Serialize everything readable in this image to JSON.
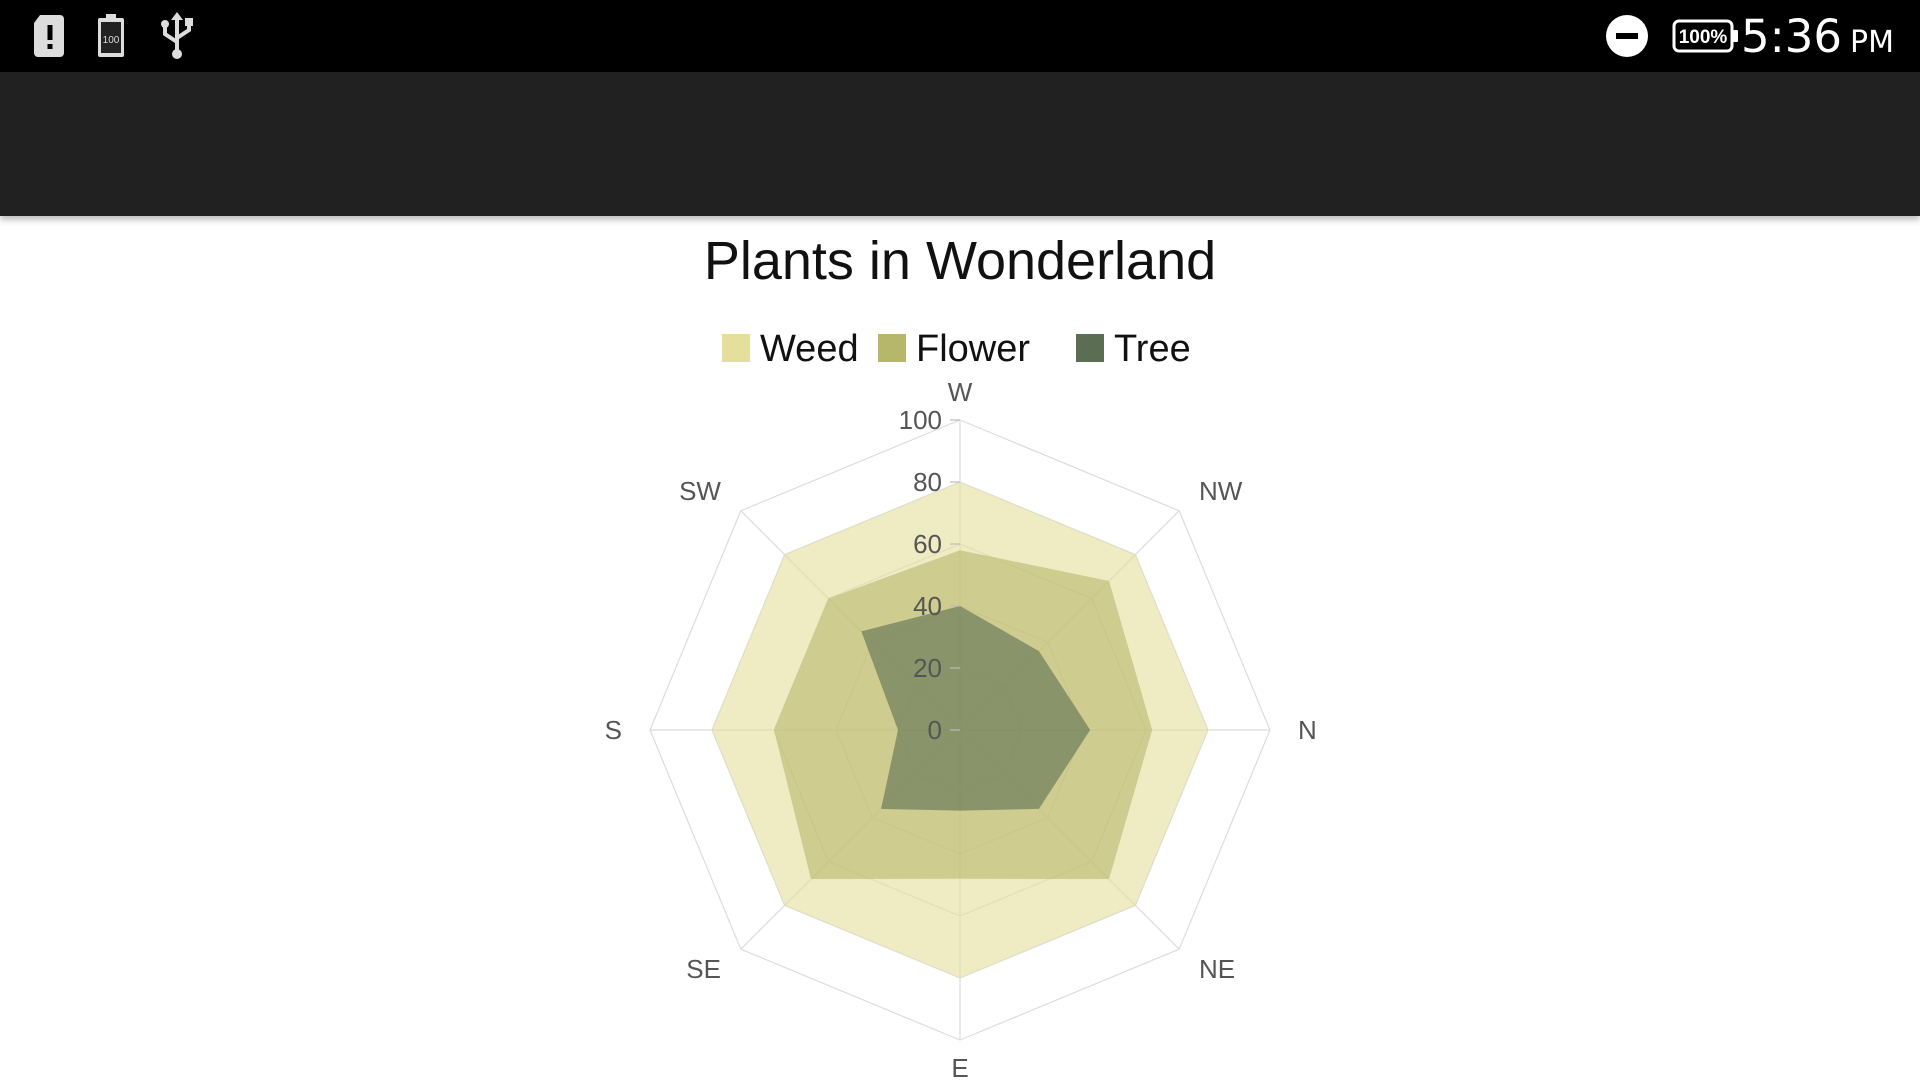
{
  "status_bar": {
    "icons": [
      "alert-sim-icon",
      "battery-saver-icon",
      "usb-icon"
    ],
    "right_icons": [
      "do-not-disturb-icon",
      "battery-icon"
    ],
    "battery_text": "100%",
    "battery_small_text": "100",
    "time": "5:36",
    "ampm": "PM"
  },
  "app_bar": {
    "title": ""
  },
  "chart_data": {
    "type": "radar",
    "title": "Plants in Wonderland",
    "categories": [
      "W",
      "NW",
      "N",
      "NE",
      "E",
      "SE",
      "S",
      "SW"
    ],
    "ylim": [
      0,
      100
    ],
    "ticks": [
      "0",
      "20",
      "40",
      "60",
      "80",
      "100"
    ],
    "grid": true,
    "legend_position": "top",
    "series": [
      {
        "name": "Weed",
        "color": "#E4DF9B",
        "values": [
          80,
          80,
          80,
          80,
          80,
          80,
          80,
          80
        ]
      },
      {
        "name": "Flower",
        "color": "#B7B76A",
        "values": [
          58,
          68,
          62,
          68,
          48,
          68,
          60,
          60
        ]
      },
      {
        "name": "Tree",
        "color": "#5B6E53",
        "values": [
          40,
          36,
          42,
          36,
          26,
          36,
          20,
          45
        ]
      }
    ]
  }
}
